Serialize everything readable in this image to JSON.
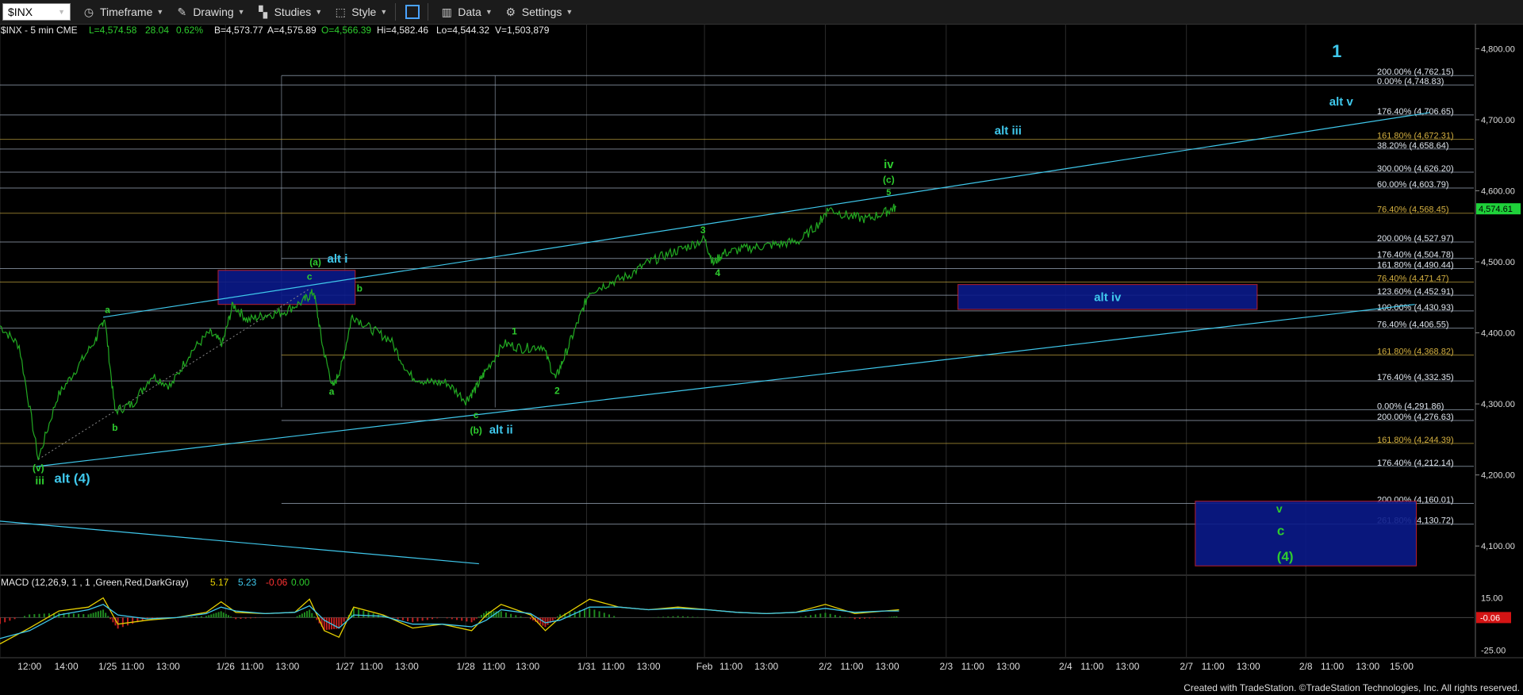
{
  "toolbar": {
    "symbol": "$INX",
    "items": [
      "Timeframe",
      "Drawing",
      "Studies",
      "Style",
      "Data",
      "Settings"
    ]
  },
  "header_info": {
    "symbol_desc": "$INX - 5 min  CME",
    "last": "L=4,574.58",
    "change": "28.04",
    "pct": "0.62%",
    "bid": "B=4,573.77",
    "ask": "A=4,575.89",
    "open": "O=4,566.39",
    "high": "Hi=4,582.46",
    "low": "Lo=4,544.32",
    "volume": "V=1,503,879"
  },
  "macd_label": {
    "title": "MACD (12,26,9, 1 , 1 ,Green,Red,DarkGray)",
    "v1": "5.17",
    "v2": "5.23",
    "v3": "-0.06",
    "v4": "0.00"
  },
  "footer": "Created with TradeStation. ©TradeStation Technologies, Inc. All rights reserved.",
  "colors": {
    "price": "#22aa22",
    "cyan": "#3fc8ec",
    "green_label": "#2ecc2e",
    "box_fill": "#0a1a8a",
    "box_border": "#cc2233",
    "fib_line": "#9aa7b8",
    "last_price_bg": "#1fd13a"
  },
  "chart_data": {
    "type": "line",
    "title": "$INX - 5 min",
    "y_axis": {
      "range": [
        4060,
        4835
      ],
      "ticks": [
        "4,800.00",
        "4,700.00",
        "4,600.00",
        "4,500.00",
        "4,400.00",
        "4,300.00",
        "4,200.00",
        "4,100.00"
      ]
    },
    "x_axis": {
      "range": [
        0,
        100
      ],
      "tick_labels": [
        "12:00",
        "14:00",
        "1/25",
        "11:00",
        "13:00",
        "1/26",
        "11:00",
        "13:00",
        "1/27",
        "11:00",
        "13:00",
        "1/28",
        "11:00",
        "13:00",
        "1/31",
        "11:00",
        "13:00",
        "Feb",
        "11:00",
        "13:00",
        "2/2",
        "11:00",
        "13:00",
        "2/3",
        "11:00",
        "13:00",
        "2/4",
        "11:00",
        "13:00",
        "2/7",
        "11:00",
        "13:00",
        "2/8",
        "11:00",
        "13:00",
        "15:00"
      ],
      "tick_x": [
        2.0,
        4.5,
        7.3,
        9.0,
        11.4,
        15.3,
        17.1,
        19.5,
        23.4,
        25.2,
        27.6,
        31.6,
        33.5,
        35.8,
        39.8,
        41.6,
        44.0,
        47.8,
        49.6,
        52.0,
        56.0,
        57.8,
        60.2,
        64.2,
        66.0,
        68.4,
        72.3,
        74.1,
        76.5,
        80.5,
        82.3,
        84.7,
        88.6,
        90.4,
        92.8,
        95.1
      ]
    },
    "last_price": "4,574.61",
    "price_series": [
      [
        0,
        4410
      ],
      [
        1.3,
        4382
      ],
      [
        2.6,
        4222
      ],
      [
        3.9,
        4310
      ],
      [
        5.2,
        4350
      ],
      [
        6.5,
        4391
      ],
      [
        7.1,
        4422
      ],
      [
        7.8,
        4290
      ],
      [
        9.0,
        4300
      ],
      [
        10.3,
        4340
      ],
      [
        11.6,
        4325
      ],
      [
        12.9,
        4372
      ],
      [
        14.2,
        4400
      ],
      [
        15.1,
        4385
      ],
      [
        15.8,
        4440
      ],
      [
        16.8,
        4418
      ],
      [
        18.0,
        4425
      ],
      [
        19.3,
        4430
      ],
      [
        20.6,
        4445
      ],
      [
        21.3,
        4458
      ],
      [
        21.9,
        4380
      ],
      [
        22.6,
        4322
      ],
      [
        23.2,
        4356
      ],
      [
        23.9,
        4425
      ],
      [
        25.2,
        4405
      ],
      [
        26.5,
        4390
      ],
      [
        27.8,
        4340
      ],
      [
        29.1,
        4330
      ],
      [
        30.3,
        4330
      ],
      [
        31.6,
        4305
      ],
      [
        32.3,
        4322
      ],
      [
        32.9,
        4345
      ],
      [
        34.2,
        4385
      ],
      [
        35.5,
        4378
      ],
      [
        36.8,
        4382
      ],
      [
        37.7,
        4335
      ],
      [
        38.4,
        4372
      ],
      [
        39.3,
        4420
      ],
      [
        40.0,
        4458
      ],
      [
        41.3,
        4470
      ],
      [
        42.6,
        4480
      ],
      [
        43.9,
        4498
      ],
      [
        45.2,
        4510
      ],
      [
        46.5,
        4520
      ],
      [
        47.8,
        4532
      ],
      [
        48.4,
        4498
      ],
      [
        49.1,
        4512
      ],
      [
        50.4,
        4518
      ],
      [
        51.7,
        4522
      ],
      [
        53.0,
        4525
      ],
      [
        54.3,
        4530
      ],
      [
        55.6,
        4555
      ],
      [
        56.2,
        4575
      ],
      [
        57.5,
        4565
      ],
      [
        58.8,
        4560
      ],
      [
        60.1,
        4570
      ],
      [
        60.8,
        4577
      ]
    ],
    "fib_levels": [
      {
        "label": "200.00% (4,762.15)",
        "value": 4762.15
      },
      {
        "label": "0.00% (4,748.83)",
        "value": 4748.83
      },
      {
        "label": "176.40% (4,706.65)",
        "value": 4706.65
      },
      {
        "label": "161.80% (4,672.31)",
        "value": 4672.31
      },
      {
        "label": "38.20% (4,658.64)",
        "value": 4658.64
      },
      {
        "label": "300.00% (4,626.20)",
        "value": 4626.2
      },
      {
        "label": "60.00% (4,603.79)",
        "value": 4603.79
      },
      {
        "label": "76.40% (4,568.45)",
        "value": 4568.45
      },
      {
        "label": "200.00% (4,527.97)",
        "value": 4527.97
      },
      {
        "label": "176.40% (4,504.78)",
        "value": 4504.78
      },
      {
        "label": "161.80% (4,490.44)",
        "value": 4490.44
      },
      {
        "label": "76.40% (4,471.47)",
        "value": 4471.47
      },
      {
        "label": "123.60% (4,452.91)",
        "value": 4452.91
      },
      {
        "label": "100.00% (4,430.93)",
        "value": 4430.93
      },
      {
        "label": "76.40% (4,406.55)",
        "value": 4406.55
      },
      {
        "label": "161.80% (4,368.82)",
        "value": 4368.82
      },
      {
        "label": "176.40% (4,332.35)",
        "value": 4332.35
      },
      {
        "label": "0.00% (4,291.86)",
        "value": 4291.86
      },
      {
        "label": "200.00% (4,276.63)",
        "value": 4276.63
      },
      {
        "label": "161.80% (4,244.39)",
        "value": 4244.39
      },
      {
        "label": "176.40% (4,212.14)",
        "value": 4212.14
      },
      {
        "label": "200.00% (4,160.01)",
        "value": 4160.01
      },
      {
        "label": "261.80% (4,130.72)",
        "value": 4130.72
      }
    ],
    "boxes": [
      {
        "x": [
          14.8,
          24.1
        ],
        "y": [
          4440,
          4488
        ]
      },
      {
        "x": [
          65.0,
          85.3
        ],
        "y": [
          4433,
          4468
        ],
        "label": "alt iv"
      },
      {
        "x": [
          81.1,
          96.1
        ],
        "y": [
          4072,
          4163
        ]
      }
    ],
    "trendlines": [
      {
        "from": [
          7.0,
          4422
        ],
        "to": [
          97,
          4710
        ]
      },
      {
        "from": [
          2.5,
          4212
        ],
        "to": [
          96,
          4440
        ]
      },
      {
        "from": [
          0,
          4135
        ],
        "to": [
          32.5,
          4075
        ]
      }
    ],
    "wave_labels": [
      {
        "text": "a",
        "x": 7.3,
        "y": 4428,
        "color": "green",
        "size": 12
      },
      {
        "text": "b",
        "x": 7.8,
        "y": 4262,
        "color": "green",
        "size": 12
      },
      {
        "text": "(v)",
        "x": 2.6,
        "y": 4205,
        "color": "green",
        "size": 12
      },
      {
        "text": "iii",
        "x": 2.7,
        "y": 4187,
        "color": "green",
        "size": 14
      },
      {
        "text": "alt (4)",
        "x": 4.9,
        "y": 4189,
        "color": "cyan",
        "size": 17
      },
      {
        "text": "(a)",
        "x": 21.4,
        "y": 4495,
        "color": "green",
        "size": 12
      },
      {
        "text": "alt i",
        "x": 22.9,
        "y": 4499,
        "color": "cyan",
        "size": 15
      },
      {
        "text": "c",
        "x": 21.0,
        "y": 4475,
        "color": "green",
        "size": 12
      },
      {
        "text": "b",
        "x": 24.4,
        "y": 4458,
        "color": "green",
        "size": 12
      },
      {
        "text": "a",
        "x": 22.5,
        "y": 4313,
        "color": "green",
        "size": 12
      },
      {
        "text": "c",
        "x": 32.3,
        "y": 4280,
        "color": "green",
        "size": 12
      },
      {
        "text": "(b)",
        "x": 32.3,
        "y": 4258,
        "color": "green",
        "size": 12
      },
      {
        "text": "alt ii",
        "x": 34.0,
        "y": 4258,
        "color": "cyan",
        "size": 15
      },
      {
        "text": "1",
        "x": 34.9,
        "y": 4398,
        "color": "green",
        "size": 12
      },
      {
        "text": "2",
        "x": 37.8,
        "y": 4314,
        "color": "green",
        "size": 12
      },
      {
        "text": "3",
        "x": 47.7,
        "y": 4540,
        "color": "green",
        "size": 12
      },
      {
        "text": "4",
        "x": 48.7,
        "y": 4480,
        "color": "green",
        "size": 12
      },
      {
        "text": "iv",
        "x": 60.3,
        "y": 4632,
        "color": "green",
        "size": 15
      },
      {
        "text": "(c)",
        "x": 60.3,
        "y": 4611,
        "color": "green",
        "size": 12
      },
      {
        "text": "5",
        "x": 60.3,
        "y": 4594,
        "color": "green",
        "size": 11
      },
      {
        "text": "alt iii",
        "x": 68.4,
        "y": 4679,
        "color": "cyan",
        "size": 15
      },
      {
        "text": "1",
        "x": 90.7,
        "y": 4788,
        "color": "cyan",
        "size": 22
      },
      {
        "text": "alt v",
        "x": 91.0,
        "y": 4720,
        "color": "cyan",
        "size": 15
      },
      {
        "text": "v",
        "x": 86.8,
        "y": 4147,
        "color": "green",
        "size": 14
      },
      {
        "text": "c",
        "x": 86.9,
        "y": 4115,
        "color": "green",
        "size": 17
      },
      {
        "text": "(4)",
        "x": 87.2,
        "y": 4079,
        "color": "green",
        "size": 17
      }
    ],
    "macd": {
      "label": "MACD (12,26,9, 1 , 1 ,Green,Red,DarkGray)",
      "y_ticks": [
        "15.00",
        "-25.00"
      ],
      "current_value": "-0.06",
      "range": [
        -30,
        22
      ],
      "macd_line": [
        [
          0,
          -20
        ],
        [
          2,
          -8
        ],
        [
          4,
          5
        ],
        [
          6,
          8
        ],
        [
          7,
          15
        ],
        [
          8,
          -5
        ],
        [
          10,
          -2
        ],
        [
          12,
          0
        ],
        [
          14,
          4
        ],
        [
          15,
          12
        ],
        [
          16,
          4
        ],
        [
          18,
          3
        ],
        [
          20,
          4
        ],
        [
          21,
          14
        ],
        [
          22,
          -10
        ],
        [
          23,
          -15
        ],
        [
          24,
          8
        ],
        [
          26,
          2
        ],
        [
          28,
          -8
        ],
        [
          30,
          -5
        ],
        [
          32,
          -10
        ],
        [
          33,
          2
        ],
        [
          34,
          10
        ],
        [
          36,
          2
        ],
        [
          37,
          -10
        ],
        [
          38,
          0
        ],
        [
          40,
          14
        ],
        [
          42,
          8
        ],
        [
          44,
          6
        ],
        [
          46,
          8
        ],
        [
          48,
          6
        ],
        [
          50,
          4
        ],
        [
          52,
          3
        ],
        [
          54,
          4
        ],
        [
          56,
          10
        ],
        [
          58,
          3
        ],
        [
          60,
          5
        ],
        [
          61,
          6
        ]
      ],
      "signal_line": [
        [
          0,
          -16
        ],
        [
          2,
          -10
        ],
        [
          4,
          2
        ],
        [
          6,
          6
        ],
        [
          7,
          10
        ],
        [
          8,
          2
        ],
        [
          10,
          -1
        ],
        [
          12,
          0
        ],
        [
          14,
          3
        ],
        [
          15,
          8
        ],
        [
          16,
          5
        ],
        [
          18,
          3
        ],
        [
          20,
          4
        ],
        [
          21,
          9
        ],
        [
          22,
          -2
        ],
        [
          23,
          -8
        ],
        [
          24,
          2
        ],
        [
          26,
          1
        ],
        [
          28,
          -5
        ],
        [
          30,
          -5
        ],
        [
          32,
          -7
        ],
        [
          33,
          -2
        ],
        [
          34,
          6
        ],
        [
          36,
          3
        ],
        [
          37,
          -4
        ],
        [
          38,
          -2
        ],
        [
          40,
          8
        ],
        [
          42,
          8
        ],
        [
          44,
          6
        ],
        [
          46,
          7
        ],
        [
          48,
          6
        ],
        [
          50,
          4
        ],
        [
          52,
          3
        ],
        [
          54,
          4
        ],
        [
          56,
          7
        ],
        [
          58,
          4
        ],
        [
          60,
          5
        ],
        [
          61,
          5
        ]
      ]
    }
  }
}
